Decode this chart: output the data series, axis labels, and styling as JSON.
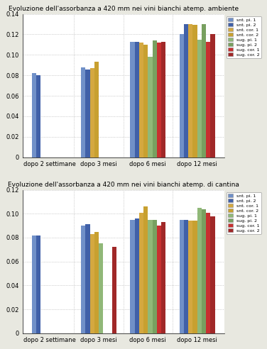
{
  "title1": "Evoluzione dell'assorbanza a 420 mm nei vini bianchi atemp. ambiente",
  "title2": "Evoluzione dell'assorbanza a 420 mm nei vini bianchi atemp. di cantina",
  "categories": [
    "dopo 2 settimane",
    "dopo 3 mesi",
    "dopo 6 mesi",
    "dopo 12 mesi"
  ],
  "legend_labels": [
    "snt. pi. 1",
    "snt. pi. 2",
    "snt. cor. 1",
    "snt. cor. 2",
    "sug. pi. 1",
    "sug. pi. 2",
    "sug. cor. 1",
    "sug. cor. 2"
  ],
  "colors": [
    "#7090c8",
    "#4060a8",
    "#d4a840",
    "#c8a030",
    "#90b878",
    "#78a060",
    "#c83030",
    "#a02828"
  ],
  "ylim1": [
    0,
    0.14
  ],
  "yticks1": [
    0,
    0.02,
    0.04,
    0.06,
    0.08,
    0.1,
    0.12,
    0.14
  ],
  "ylim2": [
    0,
    0.12
  ],
  "yticks2": [
    0,
    0.02,
    0.04,
    0.06,
    0.08,
    0.1,
    0.12
  ],
  "data1": [
    [
      0.082,
      0.08,
      0,
      0,
      0,
      0,
      0,
      0
    ],
    [
      0.088,
      0.086,
      0.087,
      0.093,
      0,
      0,
      0,
      0
    ],
    [
      0.113,
      0.113,
      0.112,
      0.11,
      0.098,
      0.114,
      0.112,
      0.113
    ],
    [
      0.12,
      0.13,
      0.13,
      0.129,
      0.115,
      0.13,
      0.113,
      0.12
    ]
  ],
  "data1_visible": [
    [
      true,
      true,
      false,
      false,
      false,
      false,
      false,
      false
    ],
    [
      true,
      true,
      true,
      true,
      false,
      false,
      false,
      false
    ],
    [
      true,
      true,
      true,
      true,
      true,
      true,
      true,
      true
    ],
    [
      true,
      true,
      true,
      true,
      true,
      true,
      true,
      true
    ]
  ],
  "data2": [
    [
      0.082,
      0.082,
      0,
      0,
      0,
      0,
      0,
      0
    ],
    [
      0.09,
      0.091,
      0.083,
      0.085,
      0.075,
      0,
      0,
      0.072
    ],
    [
      0.095,
      0.096,
      0.101,
      0.106,
      0.095,
      0.095,
      0.09,
      0.093
    ],
    [
      0.095,
      0.095,
      0.094,
      0.094,
      0.105,
      0.104,
      0.101,
      0.098
    ]
  ],
  "data2_visible": [
    [
      true,
      true,
      false,
      false,
      false,
      false,
      false,
      false
    ],
    [
      true,
      true,
      true,
      true,
      true,
      false,
      false,
      true
    ],
    [
      true,
      true,
      true,
      true,
      true,
      true,
      true,
      true
    ],
    [
      true,
      true,
      true,
      true,
      true,
      true,
      true,
      true
    ]
  ],
  "background": "#e8e8e0",
  "plot_bg": "#ffffff",
  "grid_color": "#aaaaaa",
  "vline_positions": [
    0.5,
    1.5,
    2.5
  ]
}
